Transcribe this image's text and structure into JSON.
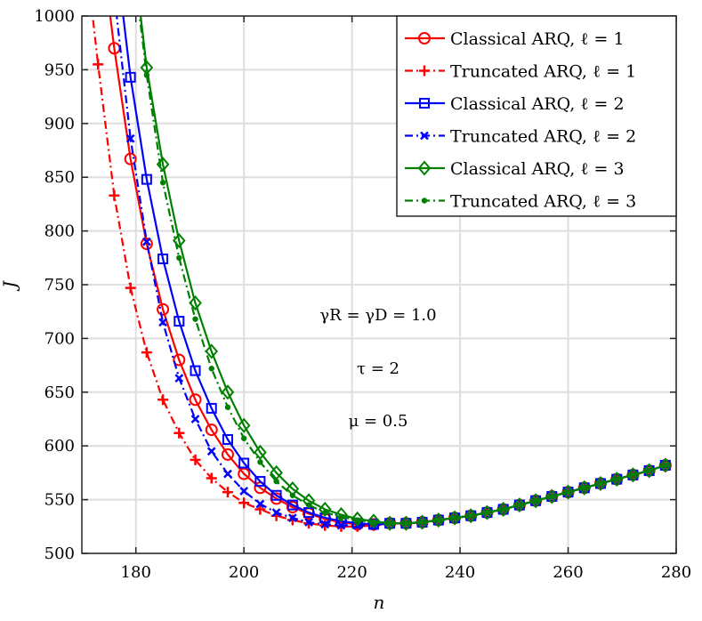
{
  "chart_data": {
    "type": "line",
    "xlabel": "n",
    "ylabel": "J",
    "xlim": [
      170,
      280
    ],
    "ylim": [
      500,
      1000
    ],
    "xticks": [
      180,
      200,
      220,
      240,
      260,
      280
    ],
    "yticks": [
      500,
      550,
      600,
      650,
      700,
      750,
      800,
      850,
      900,
      950,
      1000
    ],
    "grid": true,
    "legend_position": "top-right",
    "annotations": [
      "γR = γD = 1.0",
      "τ = 2",
      "μ = 0.5"
    ],
    "common_tail": {
      "x": [
        227,
        230,
        233,
        236,
        239,
        242,
        245,
        248,
        251,
        254,
        257,
        260,
        263,
        266,
        269,
        272,
        275,
        278
      ],
      "y": [
        528,
        528,
        529,
        531,
        533,
        535,
        538,
        541,
        545,
        549,
        553,
        557,
        561,
        565,
        569,
        573,
        577,
        582
      ]
    },
    "series": [
      {
        "name": "Classical ARQ, ℓ = 1",
        "color": "#ff0000",
        "dash": "",
        "marker": "circle",
        "x": [
          173,
          176,
          179,
          182,
          185,
          188,
          191,
          194,
          197,
          200,
          203,
          206,
          209,
          212,
          215,
          218,
          221,
          224
        ],
        "y": [
          1090,
          970,
          867,
          788,
          727,
          680,
          643,
          615,
          592,
          574,
          561,
          551,
          543,
          537,
          532,
          529,
          527,
          527
        ]
      },
      {
        "name": "Truncated ARQ, ℓ = 1",
        "color": "#ff0000",
        "dash": "dashdot",
        "marker": "plus",
        "x": [
          170,
          173,
          176,
          179,
          182,
          185,
          188,
          191,
          194,
          197,
          200,
          203,
          206,
          209,
          212,
          215,
          218,
          221,
          224
        ],
        "y": [
          1090,
          955,
          833,
          747,
          687,
          643,
          612,
          587,
          570,
          557,
          547,
          541,
          535,
          531,
          528,
          526,
          525,
          525,
          526
        ]
      },
      {
        "name": "Classical ARQ, ℓ = 2",
        "color": "#0000ff",
        "dash": "",
        "marker": "square",
        "x": [
          176,
          179,
          182,
          185,
          188,
          191,
          194,
          197,
          200,
          203,
          206,
          209,
          212,
          215,
          218,
          221,
          224
        ],
        "y": [
          1070,
          943,
          848,
          774,
          716,
          670,
          635,
          606,
          584,
          567,
          554,
          545,
          538,
          533,
          530,
          528,
          527
        ]
      },
      {
        "name": "Truncated ARQ, ℓ = 2",
        "color": "#0000ff",
        "dash": "dashdot",
        "marker": "x",
        "x": [
          176,
          179,
          182,
          185,
          188,
          191,
          194,
          197,
          200,
          203,
          206,
          209,
          212,
          215,
          218,
          221,
          224
        ],
        "y": [
          1020,
          886,
          790,
          715,
          663,
          625,
          595,
          574,
          558,
          546,
          538,
          533,
          529,
          527,
          526,
          526,
          526
        ]
      },
      {
        "name": "Classical ARQ, ℓ = 3",
        "color": "#008000",
        "dash": "",
        "marker": "diamond",
        "x": [
          179,
          182,
          185,
          188,
          191,
          194,
          197,
          200,
          203,
          206,
          209,
          212,
          215,
          218,
          221,
          224
        ],
        "y": [
          1080,
          952,
          862,
          791,
          733,
          688,
          650,
          619,
          594,
          575,
          560,
          549,
          541,
          536,
          532,
          530
        ]
      },
      {
        "name": "Truncated ARQ, ℓ = 3",
        "color": "#008000",
        "dash": "dashdot",
        "marker": "dot",
        "x": [
          179,
          182,
          185,
          188,
          191,
          194,
          197,
          200,
          203,
          206,
          209,
          212,
          215,
          218,
          221,
          224
        ],
        "y": [
          1070,
          945,
          845,
          775,
          718,
          672,
          636,
          607,
          585,
          567,
          554,
          545,
          538,
          534,
          531,
          529
        ]
      }
    ]
  }
}
